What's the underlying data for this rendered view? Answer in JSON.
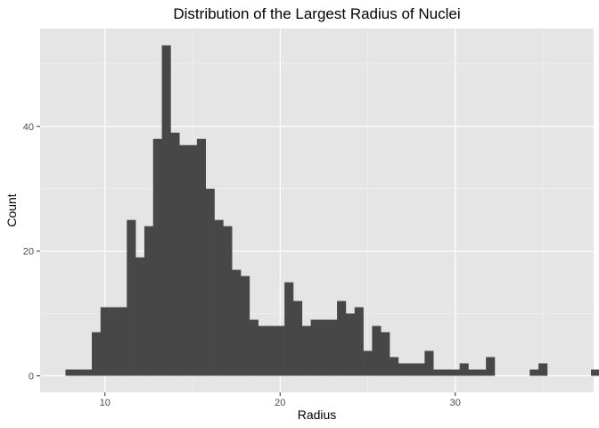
{
  "chart_data": {
    "type": "bar",
    "title": "Distribution of the Largest Radius of Nuclei",
    "xlabel": "Radius",
    "ylabel": "Count",
    "bin_width": 0.5,
    "x_start": 7.75,
    "xlim": [
      6.3,
      37.9
    ],
    "ylim": [
      -2.65,
      55.7
    ],
    "x_ticks": [
      10,
      20,
      30
    ],
    "y_ticks": [
      0,
      20,
      40
    ],
    "values": [
      1,
      1,
      1,
      7,
      11,
      11,
      11,
      25,
      19,
      24,
      38,
      53,
      39,
      37,
      37,
      38,
      30,
      25,
      24,
      17,
      16,
      9,
      8,
      8,
      8,
      15,
      12,
      8,
      9,
      9,
      9,
      12,
      10,
      11,
      4,
      8,
      7,
      3,
      2,
      2,
      2,
      4,
      1,
      1,
      1,
      2,
      1,
      1,
      3,
      0,
      0,
      0,
      0,
      1,
      2,
      0,
      0,
      0,
      0,
      0,
      1
    ],
    "bar_color": "#474747",
    "panel_color": "#e5e5e5",
    "grid": true
  }
}
